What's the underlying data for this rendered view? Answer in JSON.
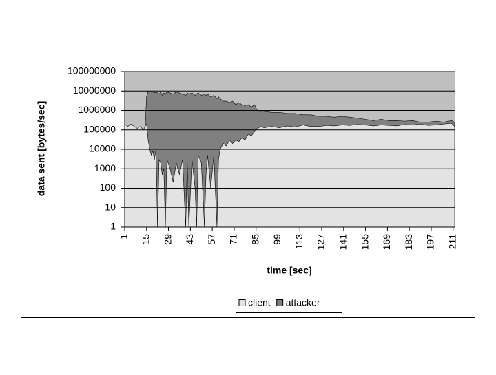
{
  "chart_data": {
    "type": "area",
    "y_label": "data sent [bytes/sec]",
    "x_label": "time [sec]",
    "yscale": "log",
    "grid": true,
    "legend": "bottom",
    "background": "#c0c0c0",
    "xlim": [
      1,
      212
    ],
    "xticks": [
      1,
      15,
      29,
      43,
      57,
      71,
      85,
      99,
      113,
      127,
      141,
      155,
      169,
      183,
      197,
      211
    ],
    "ylim": [
      1,
      100000000
    ],
    "yticks": [
      1,
      10,
      100,
      1000,
      10000,
      100000,
      1000000,
      10000000,
      100000000
    ],
    "x": [
      1,
      3,
      5,
      7,
      9,
      11,
      13,
      14,
      15,
      16,
      17,
      18,
      19,
      20,
      21,
      22,
      23,
      24,
      25,
      26,
      27,
      28,
      30,
      32,
      34,
      36,
      38,
      40,
      41,
      42,
      44,
      46,
      47,
      48,
      50,
      52,
      53,
      54,
      56,
      58,
      60,
      61,
      62,
      64,
      66,
      68,
      70,
      72,
      74,
      76,
      78,
      80,
      82,
      84,
      86,
      88,
      90,
      95,
      100,
      105,
      110,
      115,
      120,
      125,
      130,
      135,
      140,
      145,
      150,
      155,
      160,
      165,
      170,
      175,
      180,
      185,
      190,
      195,
      200,
      205,
      210,
      212
    ],
    "series": [
      {
        "name": "client",
        "color": "#e3e3e3",
        "values": [
          200000,
          150000,
          200000,
          150000,
          120000,
          150000,
          100000,
          150000,
          200000,
          30000,
          10000,
          5000,
          8000,
          3000,
          10000,
          1,
          3000,
          2000,
          500,
          1000,
          1,
          3000,
          1000,
          200,
          2000,
          500,
          3000,
          1,
          2000,
          1,
          3000,
          100,
          1,
          5000,
          2000,
          1,
          500,
          5000,
          100,
          5000,
          1,
          3000,
          10000,
          20000,
          15000,
          30000,
          20000,
          30000,
          25000,
          40000,
          30000,
          60000,
          50000,
          80000,
          120000,
          150000,
          130000,
          150000,
          130000,
          160000,
          140000,
          180000,
          150000,
          150000,
          170000,
          160000,
          180000,
          170000,
          190000,
          180000,
          160000,
          180000,
          170000,
          160000,
          190000,
          180000,
          200000,
          170000,
          180000,
          200000,
          220000,
          150000
        ]
      },
      {
        "name": "attacker",
        "color": "#808080",
        "values": [
          100000,
          80000,
          100000,
          90000,
          80000,
          90000,
          80000,
          100000,
          5000000,
          10000000,
          10000000,
          10000000,
          9000000,
          8000000,
          9000000,
          8000000,
          7000000,
          9000000,
          6000000,
          8000000,
          7000000,
          9000000,
          8000000,
          7000000,
          9000000,
          8000000,
          7000000,
          6000000,
          8000000,
          7000000,
          8000000,
          6000000,
          7000000,
          8000000,
          6000000,
          7000000,
          6000000,
          7000000,
          5000000,
          6000000,
          4000000,
          5000000,
          4000000,
          3000000,
          3000000,
          2500000,
          3000000,
          2000000,
          2500000,
          2000000,
          1800000,
          2000000,
          1500000,
          2000000,
          900000,
          900000,
          900000,
          800000,
          800000,
          700000,
          700000,
          600000,
          600000,
          500000,
          500000,
          450000,
          500000,
          450000,
          400000,
          350000,
          300000,
          350000,
          300000,
          300000,
          280000,
          300000,
          250000,
          250000,
          280000,
          250000,
          300000,
          250000
        ]
      }
    ]
  }
}
